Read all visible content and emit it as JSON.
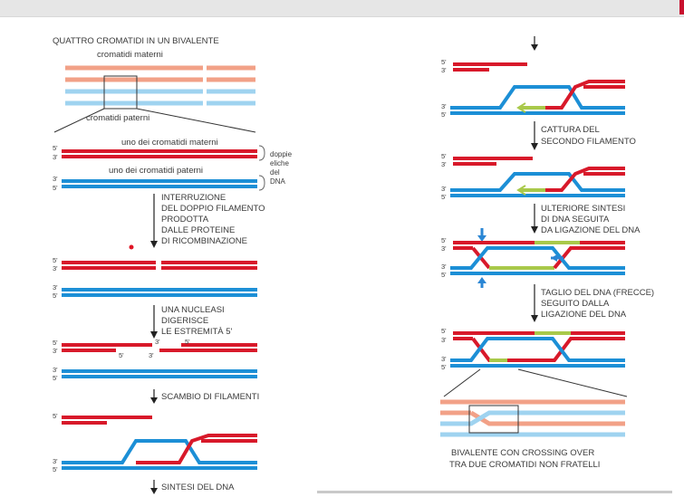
{
  "colors": {
    "maternal": "#d8192a",
    "maternal_light": "#f2a187",
    "paternal": "#1c8fd6",
    "paternal_light": "#9fd3f0",
    "synthesis": "#a9c94a",
    "text": "#3a3a3a",
    "marker": "#e01424",
    "arrow_blue": "#2a86d4"
  },
  "icons": {
    "step_arrow": "down-arrow-icon"
  },
  "left": {
    "title": "QUATTRO CROMATIDI IN UN BIVALENTE",
    "label_maternal": "cromatidi materni",
    "label_paternal": "cromatidi paterni",
    "label_one_maternal": "uno dei cromatidi materni",
    "label_one_paternal": "uno dei cromatidi paterni",
    "helix_label": [
      "doppie",
      "eliche",
      "del",
      "DNA"
    ],
    "step1": [
      "INTERRUZIONE",
      "DEL DOPPIO FILAMENTO",
      "PRODOTTA",
      "DALLE PROTEINE",
      "DI RICOMBINAZIONE"
    ],
    "step2": [
      "UNA NUCLEASI",
      "DIGERISCE",
      "LE ESTREMITÀ 5'"
    ],
    "step3": "SCAMBIO DI FILAMENTI",
    "step4": "SINTESI DEL DNA"
  },
  "ends": {
    "five": "5'",
    "three": "3'"
  },
  "right": {
    "step5": [
      "CATTURA DEL",
      "SECONDO FILAMENTO"
    ],
    "step6": [
      "ULTERIORE SINTESI",
      "DI DNA SEGUITA",
      "DA LIGAZIONE DEL DNA"
    ],
    "step7": [
      "TAGLIO DEL DNA (FRECCE)",
      "SEGUITO DALLA",
      "LIGAZIONE DEL DNA"
    ],
    "final": [
      "BIVALENTE CON CROSSING OVER",
      "TRA DUE CROMATIDI NON FRATELLI"
    ]
  }
}
